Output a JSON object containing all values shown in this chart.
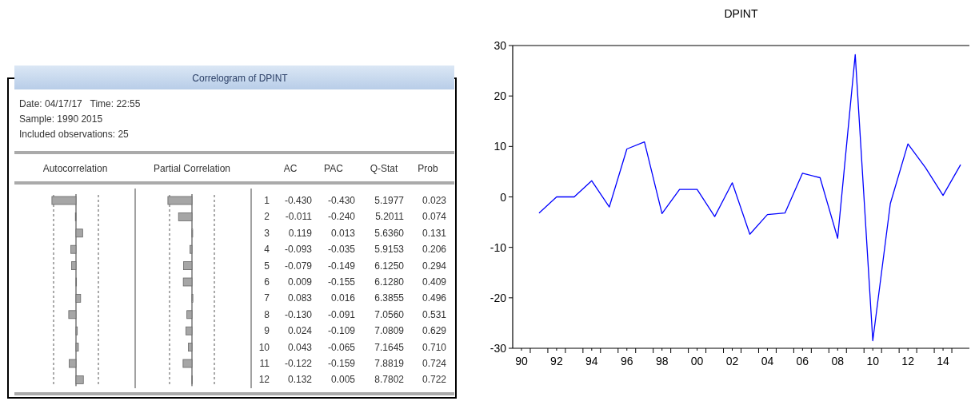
{
  "chart_data": [
    {
      "type": "bar",
      "orientation": "horizontal",
      "title": "Correlogram of DPINT",
      "annotations": [
        "Date: 04/17/17   Time: 22:55",
        "Sample: 1990 2015",
        "Included observations: 25"
      ],
      "xlabel": "Autocorrelation",
      "categories": [
        "1",
        "2",
        "3",
        "4",
        "5",
        "6",
        "7",
        "8",
        "9",
        "10",
        "11",
        "12"
      ],
      "series": [
        {
          "name": "AC",
          "color": "#a6a6a6",
          "values": [
            -0.43,
            -0.011,
            0.119,
            -0.093,
            -0.079,
            0.009,
            0.083,
            -0.13,
            0.024,
            0.043,
            -0.122,
            0.132
          ],
          "value_labels": [
            "-0.430",
            "-0.011",
            "0.119",
            "-0.093",
            "-0.079",
            "0.009",
            "0.083",
            "-0.130",
            "0.024",
            "0.043",
            "-0.122",
            "0.132"
          ]
        }
      ],
      "ref_lines": [
        {
          "axis": "x",
          "value": -0.4,
          "line_style": "dashed",
          "color": "#555555"
        },
        {
          "axis": "x",
          "value": 0.4,
          "line_style": "dashed",
          "color": "#555555"
        }
      ]
    },
    {
      "type": "bar",
      "orientation": "horizontal",
      "xlabel": "Partial Correlation",
      "categories": [
        "1",
        "2",
        "3",
        "4",
        "5",
        "6",
        "7",
        "8",
        "9",
        "10",
        "11",
        "12"
      ],
      "tick_labels": false,
      "series": [
        {
          "name": "PAC",
          "color": "#a6a6a6",
          "values": [
            -0.43,
            -0.24,
            0.013,
            -0.035,
            -0.149,
            -0.155,
            0.016,
            -0.091,
            -0.109,
            -0.065,
            -0.159,
            0.005
          ],
          "value_labels": [
            "-0.430",
            "-0.240",
            "0.013",
            "-0.035",
            "-0.149",
            "-0.155",
            "0.016",
            "-0.091",
            "-0.109",
            "-0.065",
            "-0.159",
            "0.005"
          ]
        }
      ],
      "ref_lines": [
        {
          "axis": "x",
          "value": -0.4,
          "line_style": "dashed",
          "color": "#555555"
        },
        {
          "axis": "x",
          "value": 0.4,
          "line_style": "dashed",
          "color": "#555555"
        }
      ]
    },
    {
      "type": "other",
      "annotations": [
        "Q-Stat",
        "5.1977",
        "5.2011",
        "5.6360",
        "5.9153",
        "6.1250",
        "6.1280",
        "6.3855",
        "7.0560",
        "7.0809",
        "7.1645",
        "7.8819",
        "8.7802",
        "Prob",
        "0.023",
        "0.074",
        "0.131",
        "0.206",
        "0.294",
        "0.409",
        "0.496",
        "0.531",
        "0.629",
        "0.710",
        "0.724",
        "0.722"
      ]
    },
    {
      "type": "line",
      "title": "DPINT",
      "x": [
        1991,
        1992,
        1993,
        1994,
        1995,
        1996,
        1997,
        1998,
        1999,
        2000,
        2001,
        2002,
        2003,
        2004,
        2005,
        2006,
        2007,
        2008,
        2009,
        2010,
        2011,
        2012,
        2013,
        2014,
        2015
      ],
      "series": [
        {
          "color": "#0000ff",
          "values": [
            -3.2,
            0,
            0,
            3.2,
            -2.0,
            9.5,
            10.9,
            -3.3,
            1.5,
            1.5,
            -3.9,
            2.8,
            -7.4,
            -3.5,
            -3.2,
            4.7,
            3.8,
            -8.2,
            28.2,
            -28.5,
            -1.3,
            10.5,
            5.8,
            0.3,
            6.4
          ]
        }
      ],
      "xlim": [
        1989.5,
        2015.5
      ],
      "ylim": [
        -30,
        30
      ],
      "yticks": [
        -30,
        -20,
        -10,
        0,
        10,
        20,
        30
      ],
      "xticks": [
        {
          "value": 1990,
          "label": "90"
        },
        {
          "value": 1992,
          "label": "92"
        },
        {
          "value": 1994,
          "label": "94"
        },
        {
          "value": 1996,
          "label": "96"
        },
        {
          "value": 1998,
          "label": "98"
        },
        {
          "value": 2000,
          "label": "00"
        },
        {
          "value": 2002,
          "label": "02"
        },
        {
          "value": 2004,
          "label": "04"
        },
        {
          "value": 2006,
          "label": "06"
        },
        {
          "value": 2008,
          "label": "08"
        },
        {
          "value": 2010,
          "label": "10"
        },
        {
          "value": 2012,
          "label": "12"
        },
        {
          "value": 2014,
          "label": "14"
        },
        {
          "value": 1990.5,
          "label": null
        },
        {
          "value": 1991.5,
          "label": null
        },
        {
          "value": 1992.5,
          "label": null
        },
        {
          "value": 1993.5,
          "label": null
        },
        {
          "value": 1994.5,
          "label": null
        },
        {
          "value": 1995.5,
          "label": null
        },
        {
          "value": 1996.5,
          "label": null
        },
        {
          "value": 1997.5,
          "label": null
        },
        {
          "value": 1998.5,
          "label": null
        },
        {
          "value": 1999.5,
          "label": null
        },
        {
          "value": 2000.5,
          "label": null
        },
        {
          "value": 2001.5,
          "label": null
        },
        {
          "value": 2002.5,
          "label": null
        },
        {
          "value": 2003.5,
          "label": null
        },
        {
          "value": 2004.5,
          "label": null
        },
        {
          "value": 2005.5,
          "label": null
        },
        {
          "value": 2006.5,
          "label": null
        },
        {
          "value": 2007.5,
          "label": null
        },
        {
          "value": 2008.5,
          "label": null
        },
        {
          "value": 2009.5,
          "label": null
        },
        {
          "value": 2010.5,
          "label": null
        },
        {
          "value": 2011.5,
          "label": null
        },
        {
          "value": 2012.5,
          "label": null
        },
        {
          "value": 2013.5,
          "label": null
        },
        {
          "value": 2014.5,
          "label": null
        }
      ],
      "grid": false
    }
  ]
}
